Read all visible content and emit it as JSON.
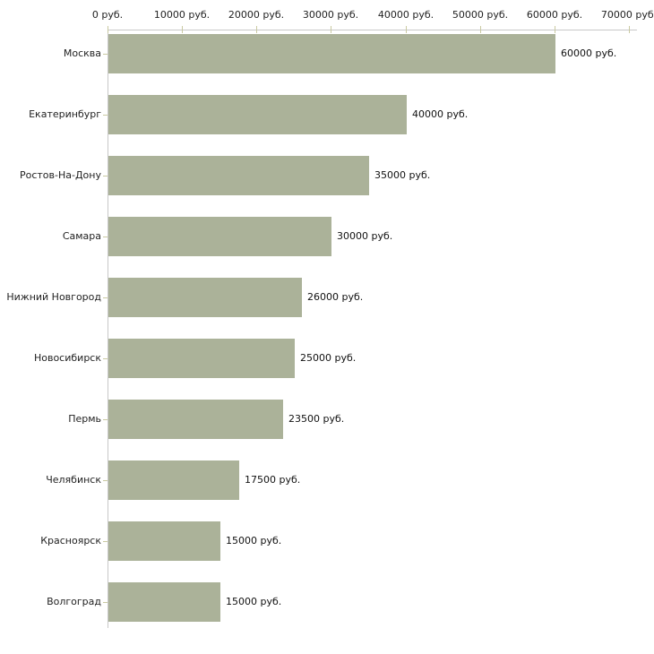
{
  "chart_data": {
    "type": "bar",
    "orientation": "horizontal",
    "categories": [
      "Москва",
      "Екатеринбург",
      "Ростов-На-Дону",
      "Самара",
      "Нижний Новгород",
      "Новосибирск",
      "Пермь",
      "Челябинск",
      "Красноярск",
      "Волгоград"
    ],
    "values": [
      60000,
      40000,
      35000,
      30000,
      26000,
      25000,
      23500,
      17500,
      15000,
      15000
    ],
    "value_labels": [
      "60000 руб.",
      "40000 руб.",
      "35000 руб.",
      "30000 руб.",
      "26000 руб.",
      "25000 руб.",
      "23500 руб.",
      "17500 руб.",
      "15000 руб.",
      "15000 руб."
    ],
    "unit": "руб.",
    "x_ticks": [
      0,
      10000,
      20000,
      30000,
      40000,
      50000,
      60000,
      70000
    ],
    "x_tick_labels": [
      "0 руб.",
      "10000 руб.",
      "20000 руб.",
      "30000 руб.",
      "40000 руб.",
      "50000 руб.",
      "60000 руб.",
      "70000 руб."
    ],
    "xlim": [
      0,
      70000
    ],
    "grid": false,
    "legend": false,
    "bar_color": "#abb299",
    "axis_color": "#c8c8c8",
    "tick_color": "#c9c9a1",
    "text_color": "#222222"
  }
}
